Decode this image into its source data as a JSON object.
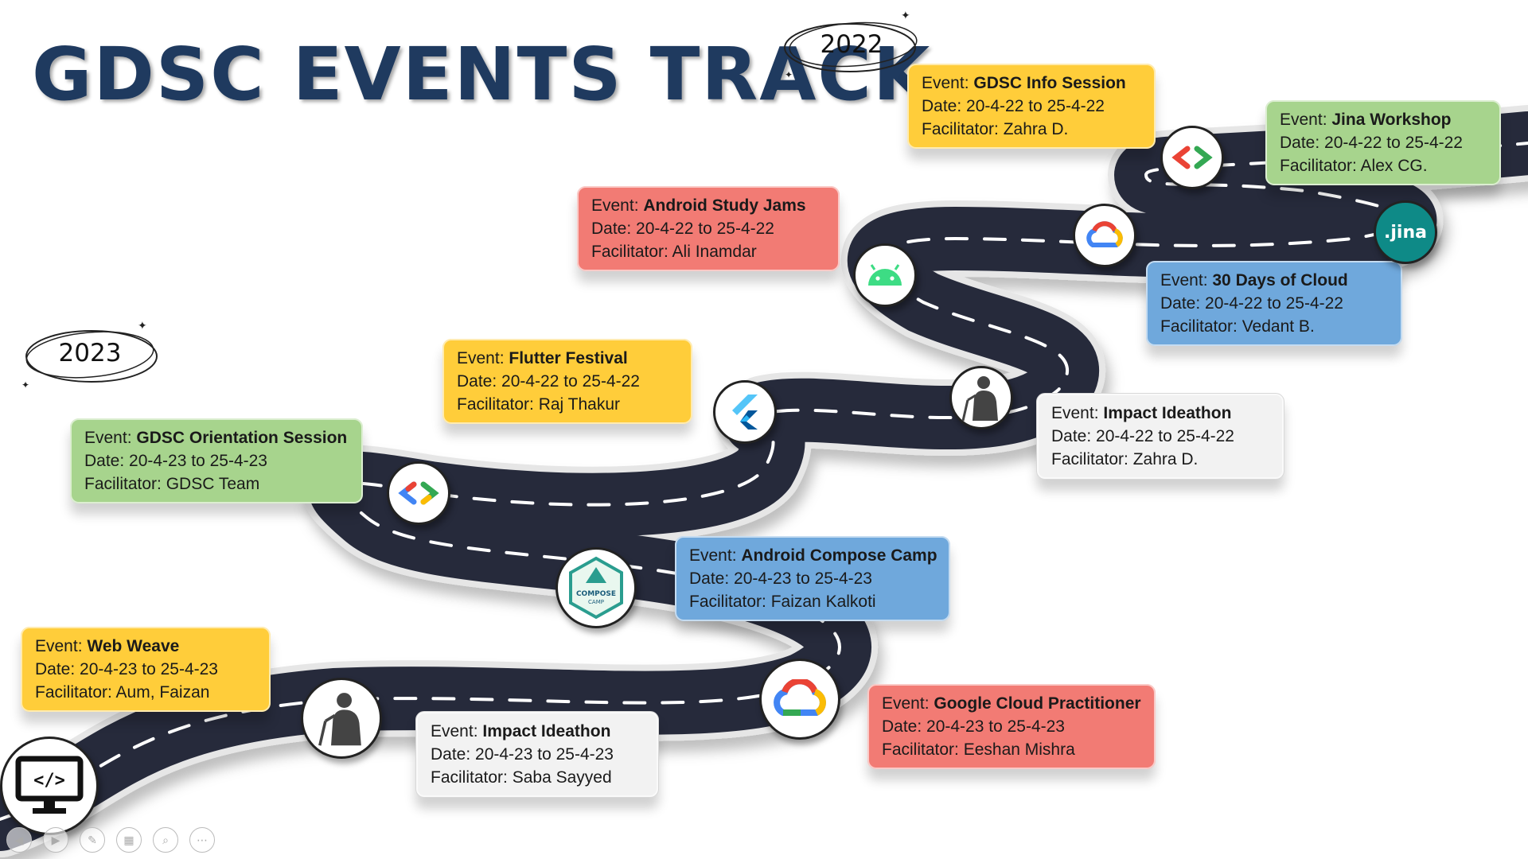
{
  "title": "GDSC EVENTS TRACK",
  "years": {
    "y2022": "2022",
    "y2023": "2023"
  },
  "labels": {
    "event": "Event: ",
    "date": "Date: ",
    "facilitator": "Facilitator: "
  },
  "events": [
    {
      "name": "GDSC Info Session",
      "date": "20-4-22 to 25-4-22",
      "facilitator": "Zahra D.",
      "color": "#ffcd3a",
      "icon": "google-developers-icon"
    },
    {
      "name": "Jina Workshop",
      "date": "20-4-22 to 25-4-22",
      "facilitator": "Alex CG.",
      "color": "#a7d48d",
      "icon": "jina-icon"
    },
    {
      "name": "Android Study Jams",
      "date": "20-4-22 to 25-4-22",
      "facilitator": "Ali  Inamdar",
      "color": "#f27b74",
      "icon": "android-icon"
    },
    {
      "name": "30 Days of Cloud",
      "date": "20-4-22 to 25-4-22",
      "facilitator": "Vedant B.",
      "color": "#6fa8dc",
      "icon": "google-cloud-icon"
    },
    {
      "name": "Flutter Festival",
      "date": "20-4-22 to 25-4-22",
      "facilitator": "Raj Thakur",
      "color": "#ffcd3a",
      "icon": "flutter-icon"
    },
    {
      "name": "Impact Ideathon",
      "date": "20-4-22 to 25-4-22",
      "facilitator": "Zahra D.",
      "color": "#f2f2f2",
      "icon": "speaker-icon"
    },
    {
      "name": "GDSC Orientation Session",
      "date": "20-4-23 to 25-4-23",
      "facilitator": " GDSC Team",
      "color": "#a7d48d",
      "icon": "google-developers-icon"
    },
    {
      "name": "Android Compose Camp",
      "date": "20-4-23 to 25-4-23",
      "facilitator": "Faizan Kalkoti",
      "color": "#6fa8dc",
      "icon": "compose-camp-icon"
    },
    {
      "name": "Web Weave",
      "date": "20-4-23 to 25-4-23",
      "facilitator": "Aum, Faizan",
      "color": "#ffcd3a",
      "icon": "web-dev-icon"
    },
    {
      "name": "Impact Ideathon",
      "date": "20-4-23 to 25-4-23",
      "facilitator": "Saba Sayyed",
      "color": "#f2f2f2",
      "icon": "speaker-icon"
    },
    {
      "name": "Google Cloud Practitioner",
      "date": "20-4-23 to 25-4-23",
      "facilitator": "Eeshan Mishra",
      "color": "#f27b74",
      "icon": "google-cloud-icon"
    }
  ],
  "logo_text": {
    "jina": ".jina",
    "compose": "COMPOSE",
    "camp": "CAMP"
  },
  "slideshow_controls": [
    "previous-icon",
    "next-icon",
    "pen-icon",
    "slides-icon",
    "zoom-icon",
    "more-icon"
  ]
}
